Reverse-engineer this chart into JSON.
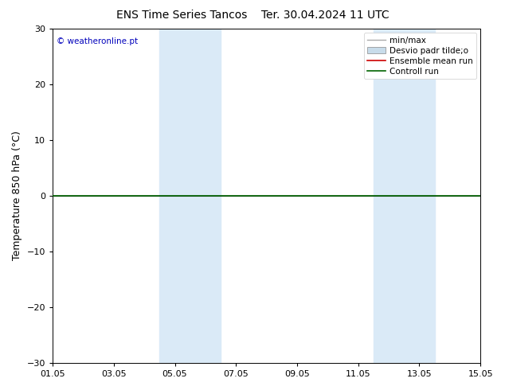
{
  "title_left": "ENS Time Series Tancos",
  "title_right": "Ter. 30.04.2024 11 UTC",
  "ylabel": "Temperature 850 hPa (°C)",
  "ylim": [
    -30,
    30
  ],
  "yticks": [
    -30,
    -20,
    -10,
    0,
    10,
    20,
    30
  ],
  "xtick_labels": [
    "01.05",
    "03.05",
    "05.05",
    "07.05",
    "09.05",
    "11.05",
    "13.05",
    "15.05"
  ],
  "xtick_positions": [
    0,
    2,
    4,
    6,
    8,
    10,
    12,
    14
  ],
  "xlim": [
    0,
    14
  ],
  "watermark": "© weatheronline.pt",
  "watermark_color": "#0000bb",
  "bg_color": "#ffffff",
  "plot_bg_color": "#ffffff",
  "shaded_bands": [
    {
      "x_start": 3.5,
      "x_end": 5.5,
      "color": "#daeaf7"
    },
    {
      "x_start": 10.5,
      "x_end": 12.5,
      "color": "#daeaf7"
    }
  ],
  "control_run_y": 0,
  "control_run_color": "#006400",
  "control_run_lw": 1.2,
  "ensemble_mean_color": "#cc0000",
  "minmax_color": "#aaaaaa",
  "std_fill_color": "#c8dcea",
  "legend_labels": [
    "min/max",
    "Desvio padr tilde;o",
    "Ensemble mean run",
    "Controll run"
  ],
  "legend_line_colors": [
    "#aaaaaa",
    "#c8dcea",
    "#cc0000",
    "#006400"
  ],
  "title_fontsize": 10,
  "tick_fontsize": 8,
  "ylabel_fontsize": 9,
  "legend_fontsize": 7.5
}
